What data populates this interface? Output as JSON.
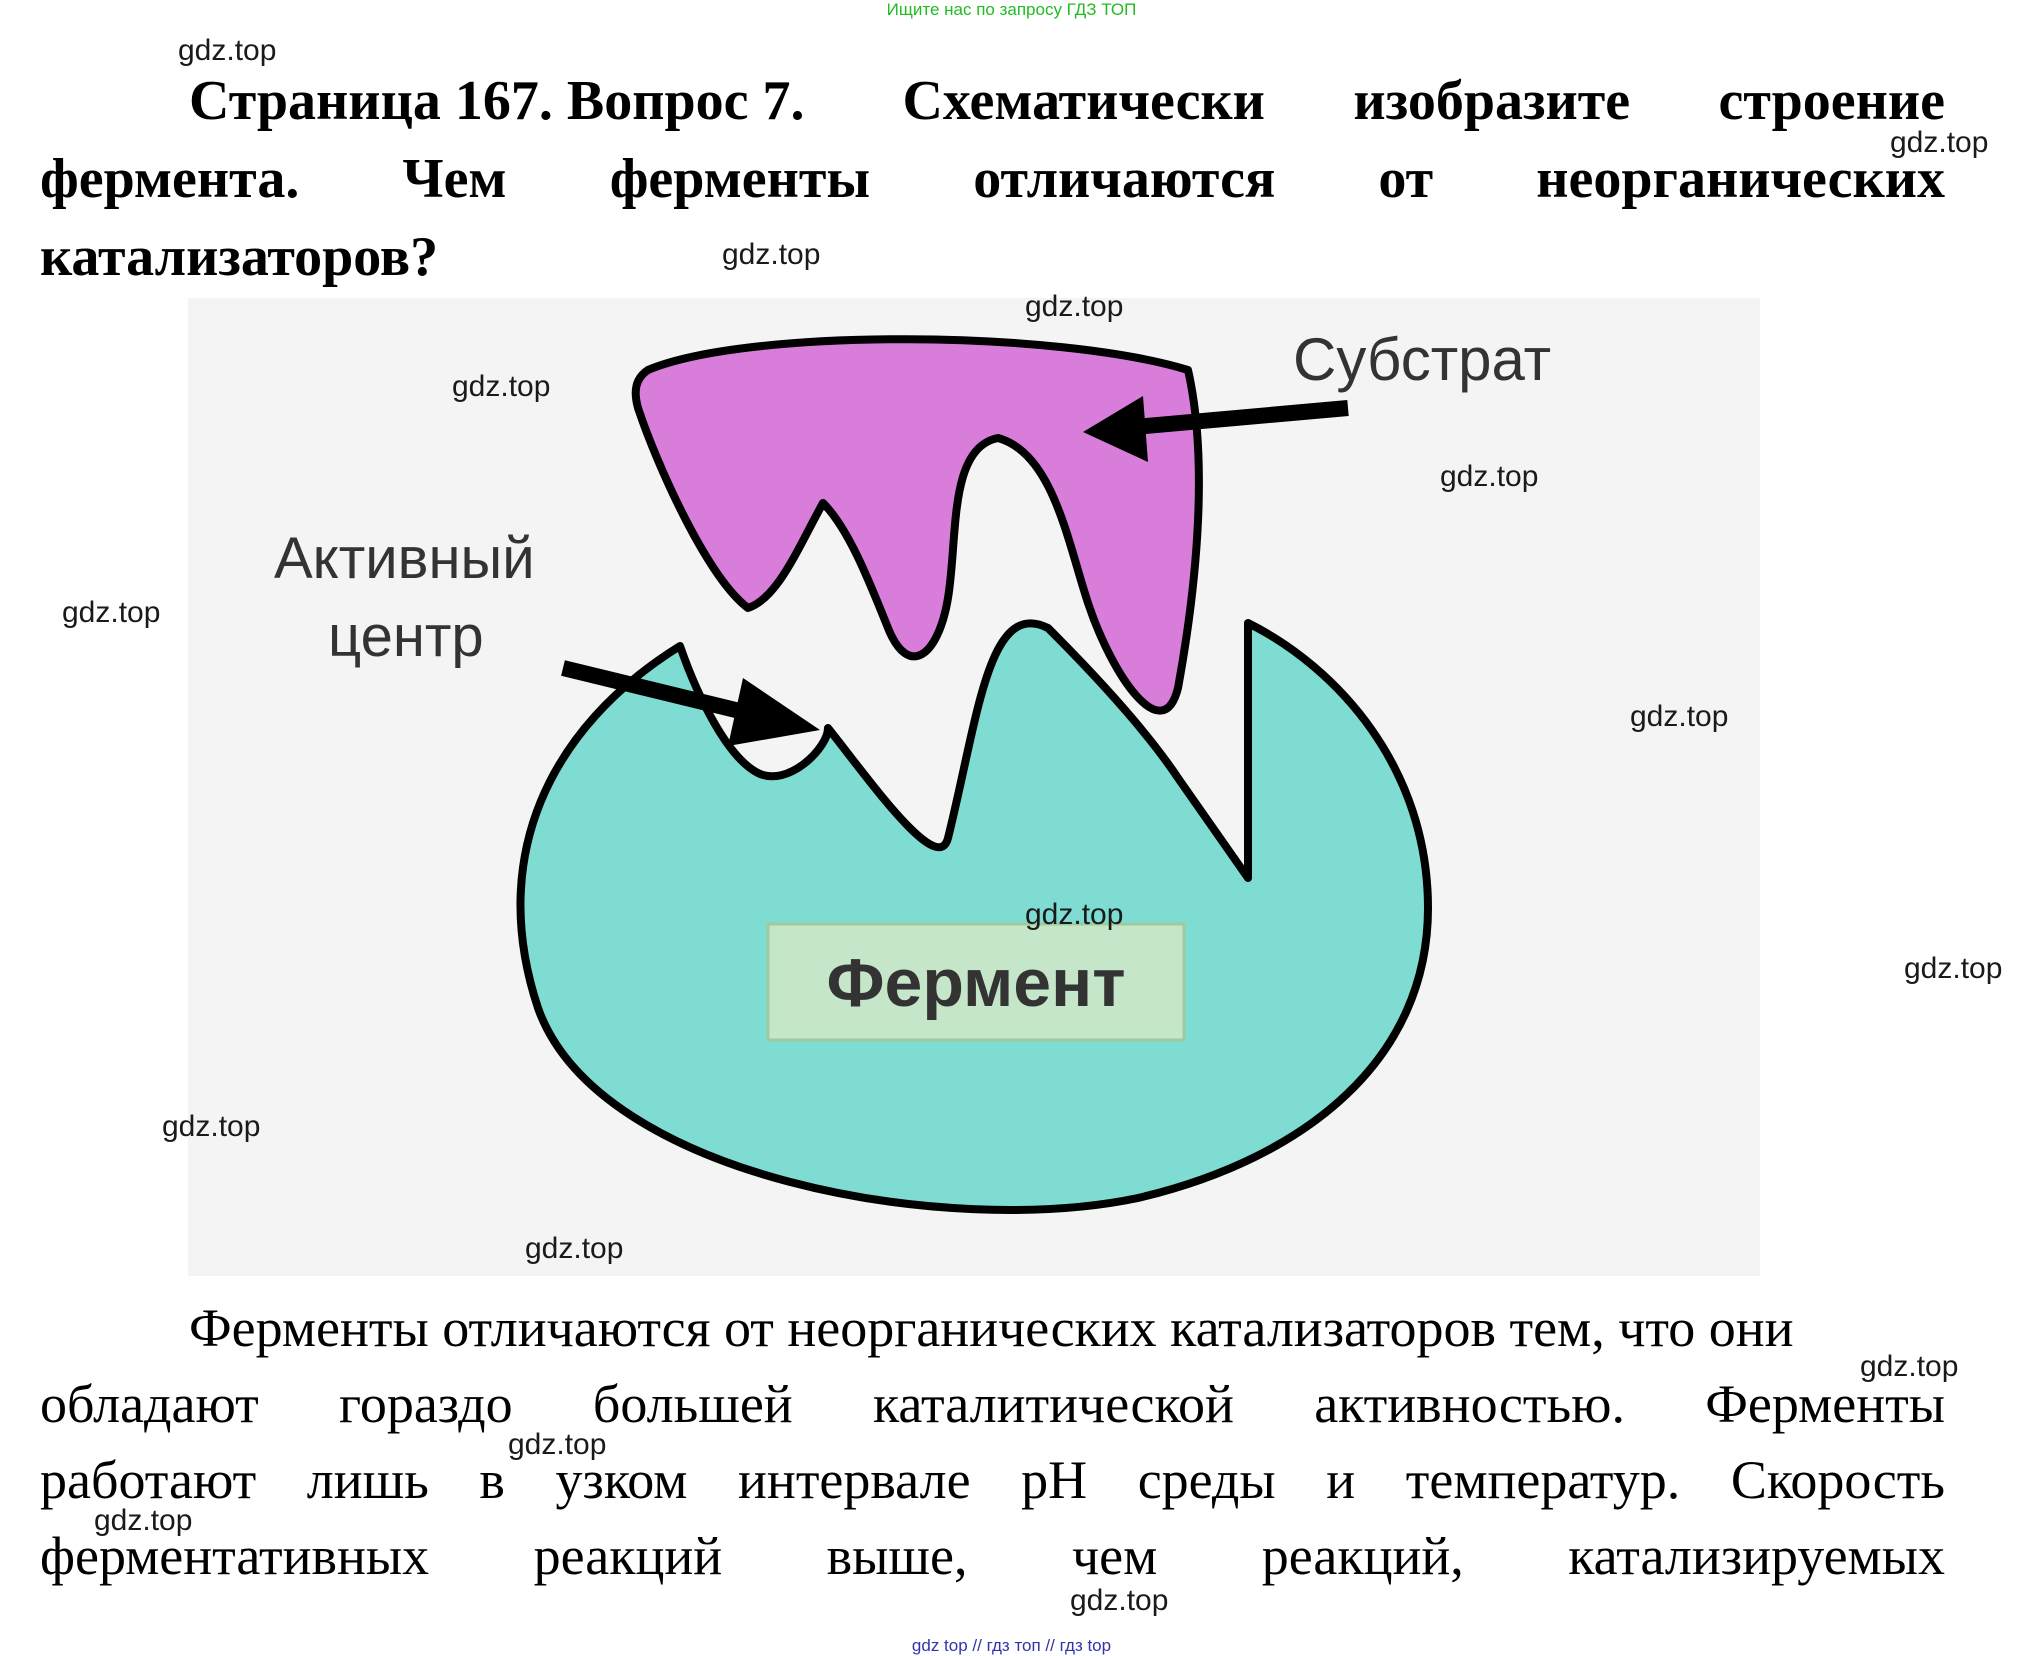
{
  "banner_top": "Ищите нас по запросу ГДЗ ТОП",
  "title": {
    "line1_a": "Страница 167. Вопрос 7.",
    "line1_words": [
      "Схематически",
      "изобразите",
      "строение"
    ],
    "line2_words": [
      "фермента.",
      "Чем",
      "ферменты",
      "отличаются",
      "от",
      "неорганических"
    ],
    "line3": "катализаторов?"
  },
  "diagram": {
    "substrate_label": "Субстрат",
    "active_center_label_1": "Активный",
    "active_center_label_2": "центр",
    "enzyme_label": "Фермент",
    "colors": {
      "substrate": "#d97ddb",
      "enzyme": "#7fdcd2",
      "enzyme_label_bg": "#c6e6c9",
      "background": "#f4f4f4"
    }
  },
  "answer": {
    "line1": "Ферменты отличаются от неорганических катализаторов тем, что они",
    "line2_words": [
      "обладают",
      "гораздо",
      "большей",
      "каталитической",
      "активностью.",
      "Ферменты"
    ],
    "line3_words": [
      "работают",
      "лишь",
      "в",
      "узком",
      "интервале",
      "pH",
      "среды",
      "и",
      "температур.",
      "Скорость"
    ],
    "line4_words": [
      "ферментативных",
      "реакций",
      "выше,",
      "чем",
      "реакций,",
      "катализируемых"
    ]
  },
  "watermark": "gdz.top",
  "banner_bottom": "gdz top  //  гдз топ  //  гдз top"
}
